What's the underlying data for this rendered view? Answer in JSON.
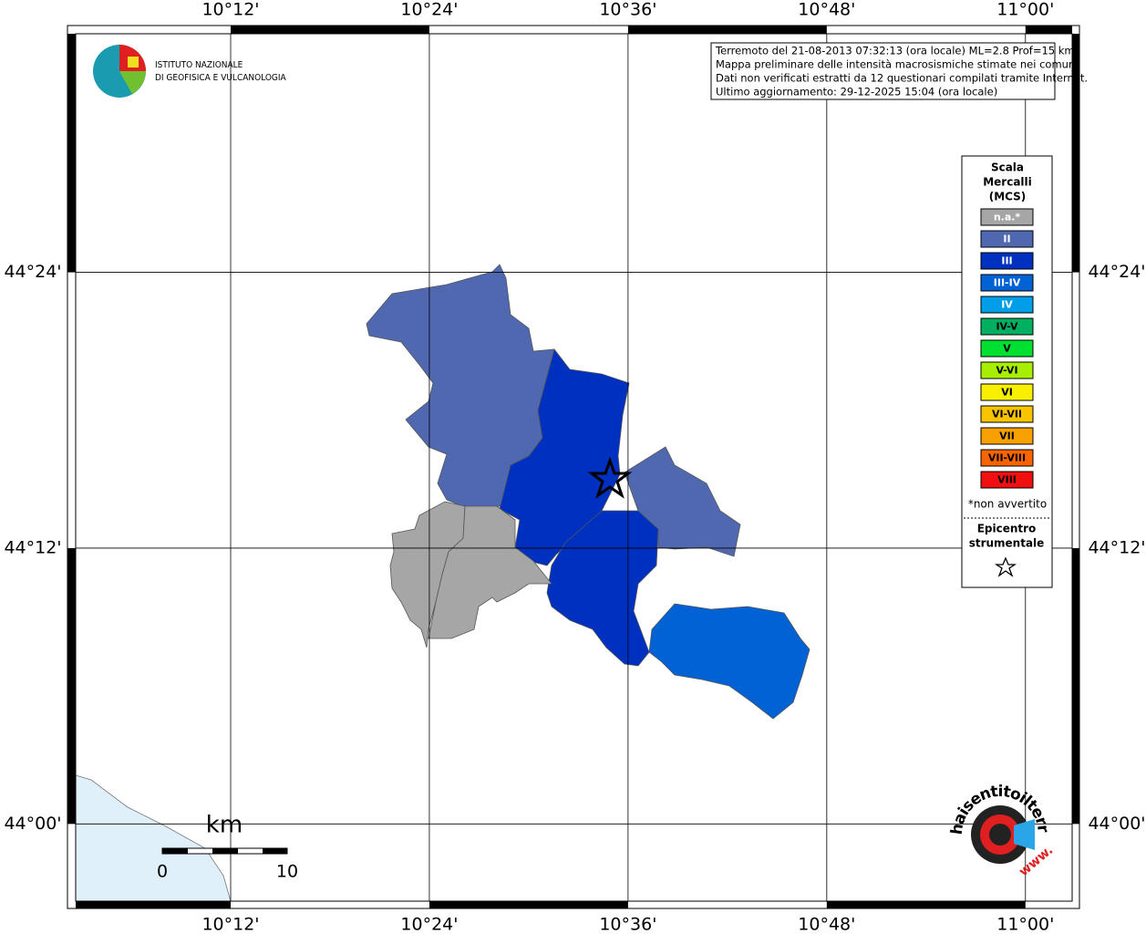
{
  "header": {
    "info_lines": [
      "Terremoto del 21-08-2013 07:32:13 (ora locale) ML=2.8 Prof=15 km",
      "Mappa preliminare delle intensità macrosismiche stimate nei comuni",
      "Dati non verificati estratti da 12 questionari compilati tramite Internet.",
      "Ultimo aggiornamento: 29-12-2025 15:04 (ora locale)"
    ]
  },
  "logo": {
    "lines": [
      "ISTITUTO NAZIONALE",
      "DI GEOFISICA E VULCANOLOGIA"
    ]
  },
  "map": {
    "xlim": [
      10.044,
      11.047
    ],
    "ylim": [
      43.944,
      44.573
    ],
    "lon_ticks": [
      {
        "value": 10.2,
        "label": "10°12'"
      },
      {
        "value": 10.4,
        "label": "10°24'"
      },
      {
        "value": 10.6,
        "label": "10°36'"
      },
      {
        "value": 10.8,
        "label": "10°48'"
      },
      {
        "value": 11.0,
        "label": "11°00'"
      }
    ],
    "lat_ticks": [
      {
        "value": 44.4,
        "label": "44°24'"
      },
      {
        "value": 44.2,
        "label": "44°12'"
      },
      {
        "value": 44.0,
        "label": "44°00'"
      }
    ]
  },
  "legend": {
    "title_lines": [
      "Scala",
      "Mercalli",
      "(MCS)"
    ],
    "items": [
      {
        "label": "n.a.*",
        "color": "#a6a6a6"
      },
      {
        "label": "II",
        "color": "#5068b0"
      },
      {
        "label": "III",
        "color": "#0030c0"
      },
      {
        "label": "III-IV",
        "color": "#0062d4"
      },
      {
        "label": "IV",
        "color": "#009ee8"
      },
      {
        "label": "IV-V",
        "color": "#00b060"
      },
      {
        "label": "V",
        "color": "#00e030"
      },
      {
        "label": "V-VI",
        "color": "#a8ee00"
      },
      {
        "label": "VI",
        "color": "#f8f000"
      },
      {
        "label": "VI-VII",
        "color": "#f8c400"
      },
      {
        "label": "VII",
        "color": "#f8a000"
      },
      {
        "label": "VII-VIII",
        "color": "#f86400"
      },
      {
        "label": "VIII",
        "color": "#f01010"
      }
    ],
    "note": "*non avvertito",
    "epicenter_lines": [
      "Epicentro",
      "strumentale"
    ]
  },
  "scale_bar": {
    "unit": "km",
    "ticks": [
      0,
      10
    ]
  },
  "badge": {
    "text": "haisentitoilterremoto.it",
    "www": "www."
  }
}
